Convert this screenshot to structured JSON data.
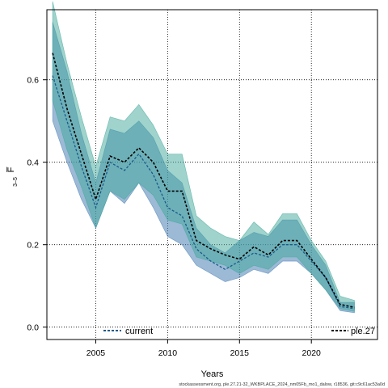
{
  "chart_data": {
    "type": "line",
    "xlabel": "Years",
    "ylabel": "F̅",
    "ylabel_sub": "3–5",
    "xlim": [
      2001.6,
      2024.6
    ],
    "ylim": [
      -0.03,
      0.77
    ],
    "xticks": [
      2005,
      2010,
      2015,
      2020
    ],
    "yticks": [
      0.0,
      0.2,
      0.4,
      0.6
    ],
    "ytick_labels": [
      "0.0",
      "0.2",
      "0.4",
      "0.6"
    ],
    "grid": true,
    "footnote": "stockassessment.org, ple.27.21-32_WKBPLACE_2024_nm05Fb_mo1_dalow, r18536, git:c9c61ac53a0d",
    "x": [
      2002,
      2003,
      2004,
      2005,
      2006,
      2007,
      2008,
      2009,
      2010,
      2011,
      2012,
      2013,
      2014,
      2015,
      2016,
      2017,
      2018,
      2019,
      2020,
      2021,
      2022,
      2023
    ],
    "series": [
      {
        "name": "current",
        "color": "#1a5a8a",
        "band_color": "#4a7fb5",
        "values": [
          0.61,
          0.5,
          0.39,
          0.29,
          0.4,
          0.38,
          0.42,
          0.37,
          0.29,
          0.27,
          0.19,
          0.16,
          0.14,
          0.16,
          0.18,
          0.17,
          0.2,
          0.2,
          0.16,
          0.12,
          0.05,
          0.045
        ],
        "lower": [
          0.5,
          0.4,
          0.31,
          0.24,
          0.33,
          0.3,
          0.35,
          0.29,
          0.22,
          0.2,
          0.15,
          0.13,
          0.11,
          0.12,
          0.14,
          0.13,
          0.16,
          0.16,
          0.13,
          0.09,
          0.04,
          0.035
        ],
        "upper": [
          0.74,
          0.62,
          0.47,
          0.35,
          0.48,
          0.47,
          0.5,
          0.46,
          0.38,
          0.35,
          0.24,
          0.2,
          0.18,
          0.21,
          0.23,
          0.22,
          0.26,
          0.26,
          0.2,
          0.15,
          0.06,
          0.06
        ]
      },
      {
        "name": "ple.27",
        "color": "#000000",
        "band_color": "#3fa89a",
        "values": [
          0.665,
          0.53,
          0.42,
          0.31,
          0.415,
          0.4,
          0.435,
          0.4,
          0.33,
          0.33,
          0.21,
          0.19,
          0.175,
          0.165,
          0.195,
          0.175,
          0.21,
          0.21,
          0.165,
          0.12,
          0.055,
          0.048
        ],
        "lower": [
          0.55,
          0.43,
          0.34,
          0.24,
          0.33,
          0.31,
          0.35,
          0.32,
          0.26,
          0.25,
          0.17,
          0.16,
          0.15,
          0.13,
          0.15,
          0.14,
          0.17,
          0.17,
          0.13,
          0.09,
          0.045,
          0.038
        ],
        "upper": [
          0.79,
          0.64,
          0.51,
          0.39,
          0.51,
          0.5,
          0.54,
          0.49,
          0.42,
          0.42,
          0.27,
          0.24,
          0.22,
          0.21,
          0.255,
          0.225,
          0.275,
          0.275,
          0.21,
          0.16,
          0.075,
          0.065
        ]
      }
    ],
    "legend": [
      {
        "label": "current",
        "placement": "bottom-left"
      },
      {
        "label": "ple.27",
        "placement": "bottom-right"
      }
    ]
  }
}
